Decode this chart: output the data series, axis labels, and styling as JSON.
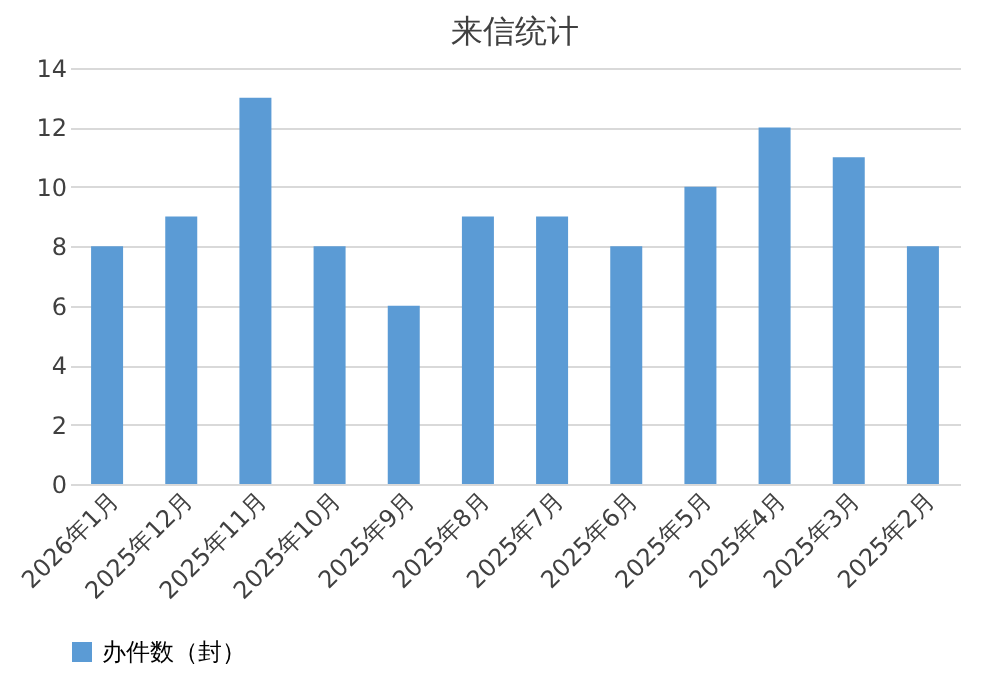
{
  "chart_data": {
    "type": "bar",
    "title": "来信统计",
    "categories": [
      "2026年1月",
      "2025年12月",
      "2025年11月",
      "2025年10月",
      "2025年9月",
      "2025年8月",
      "2025年7月",
      "2025年6月",
      "2025年5月",
      "2025年4月",
      "2025年3月",
      "2025年2月"
    ],
    "series": [
      {
        "name": "办件数（封）",
        "color": "#5b9bd5",
        "values": [
          8,
          9,
          13,
          8,
          6,
          9,
          9,
          8,
          10,
          12,
          11,
          8
        ]
      }
    ],
    "ylim": [
      0,
      14
    ],
    "yticks": [
      0,
      2,
      4,
      6,
      8,
      10,
      12,
      14
    ],
    "grid": "y",
    "legend": "bottom"
  }
}
